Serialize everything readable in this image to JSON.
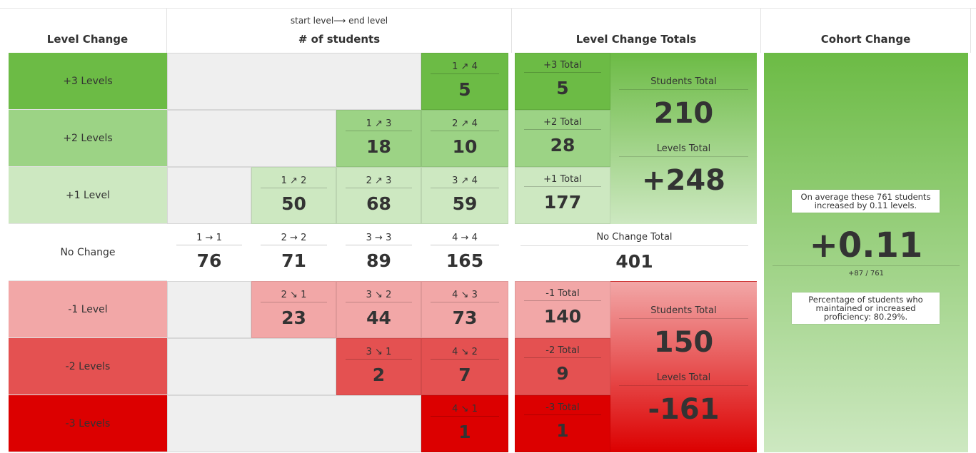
{
  "headers": {
    "level_change": "Level Change",
    "students_sub": "start level⟶ end level",
    "students": "# of students",
    "totals": "Level Change Totals",
    "cohort": "Cohort Change"
  },
  "rows": [
    {
      "label": "+3 Levels"
    },
    {
      "label": "+2 Levels"
    },
    {
      "label": "+1 Level"
    },
    {
      "label": "No Change"
    },
    {
      "label": "-1 Level"
    },
    {
      "label": "-2 Levels"
    },
    {
      "label": "-3 Levels"
    }
  ],
  "cells": {
    "c14": {
      "t": "1 ↗ 4",
      "v": "5"
    },
    "c13": {
      "t": "1 ↗ 3",
      "v": "18"
    },
    "c24": {
      "t": "2 ↗ 4",
      "v": "10"
    },
    "c12": {
      "t": "1 ↗ 2",
      "v": "50"
    },
    "c23": {
      "t": "2 ↗ 3",
      "v": "68"
    },
    "c34": {
      "t": "3 ↗ 4",
      "v": "59"
    },
    "c11": {
      "t": "1 → 1",
      "v": "76"
    },
    "c22": {
      "t": "2 → 2",
      "v": "71"
    },
    "c33": {
      "t": "3 → 3",
      "v": "89"
    },
    "c44": {
      "t": "4 → 4",
      "v": "165"
    },
    "c21": {
      "t": "2 ↘ 1",
      "v": "23"
    },
    "c32": {
      "t": "3 ↘ 2",
      "v": "44"
    },
    "c43": {
      "t": "4 ↘ 3",
      "v": "73"
    },
    "c31": {
      "t": "3 ↘ 1",
      "v": "2"
    },
    "c42": {
      "t": "4 ↘ 2",
      "v": "7"
    },
    "c41": {
      "t": "4 ↘ 1",
      "v": "1"
    }
  },
  "totals": {
    "p3": {
      "t": "+3 Total",
      "v": "5"
    },
    "p2": {
      "t": "+2 Total",
      "v": "28"
    },
    "p1": {
      "t": "+1 Total",
      "v": "177"
    },
    "n0": {
      "t": "No Change Total",
      "v": "401"
    },
    "m1": {
      "t": "-1 Total",
      "v": "140"
    },
    "m2": {
      "t": "-2 Total",
      "v": "9"
    },
    "m3": {
      "t": "-3 Total",
      "v": "1"
    },
    "pos": {
      "students_label": "Students Total",
      "students": "210",
      "levels_label": "Levels Total",
      "levels": "+248"
    },
    "neg": {
      "students_label": "Students Total",
      "students": "150",
      "levels_label": "Levels Total",
      "levels": "-161"
    }
  },
  "cohort": {
    "avg_text": "On average these 761 students increased by 0.11 levels.",
    "value": "+0.11",
    "fraction": "+87 / 761",
    "pct_text": "Percentage of students who maintained or increased proficiency: 80.29%."
  },
  "colors": {
    "plus3": "#6cbb45",
    "plus2": "#9cd385",
    "plus1": "#cde8c1",
    "minus1": "#f2a7a7",
    "minus2": "#e45151",
    "minus3": "#dc0000",
    "grey": "#efefef"
  }
}
